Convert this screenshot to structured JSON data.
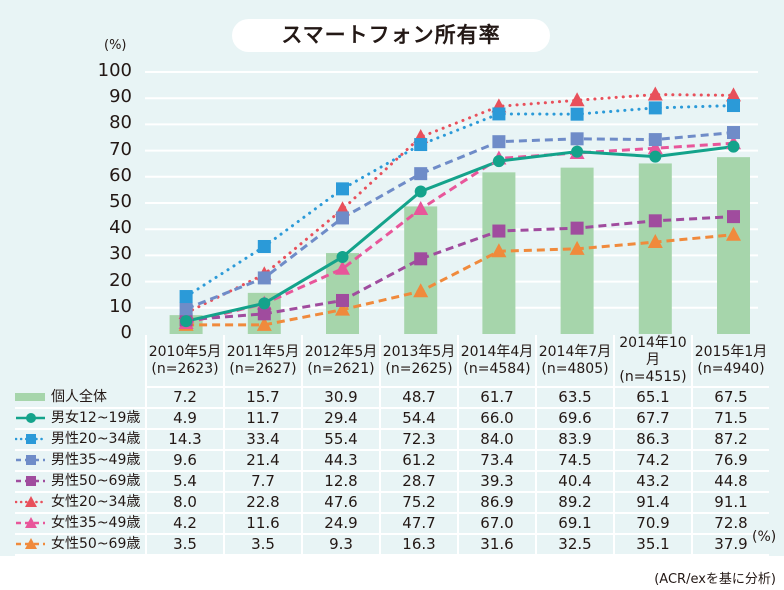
{
  "title": "スマートフォン所有率",
  "unit_label": "(%)",
  "source_note": "(ACR/exを基に分析)",
  "unit_suffix": "(%)",
  "chart_data": {
    "type": "bar+line",
    "title": "スマートフォン所有率",
    "ylabel": "(%)",
    "ylim": [
      0,
      100
    ],
    "yticks": [
      0,
      10,
      20,
      30,
      40,
      50,
      60,
      70,
      80,
      90,
      100
    ],
    "grid": true,
    "legend": "table-left",
    "categories": [
      "2010年5月",
      "2011年5月",
      "2012年5月",
      "2013年5月",
      "2014年4月",
      "2014年7月",
      "2014年10月",
      "2015年1月"
    ],
    "sample_sizes": [
      "(n=2623)",
      "(n=2627)",
      "(n=2621)",
      "(n=2625)",
      "(n=4584)",
      "(n=4805)",
      "(n=4515)",
      "(n=4940)"
    ],
    "series": [
      {
        "name": "個人全体",
        "kind": "bar",
        "marker": "none",
        "line": "none",
        "color": "#a6d5ab",
        "values": [
          7.2,
          15.7,
          30.9,
          48.7,
          61.7,
          63.5,
          65.1,
          67.5
        ]
      },
      {
        "name": "男女12~19歳",
        "kind": "line",
        "marker": "circle",
        "line": "solid",
        "color": "#14a38b",
        "values": [
          4.9,
          11.7,
          29.4,
          54.4,
          66.0,
          69.6,
          67.7,
          71.5
        ]
      },
      {
        "name": "男性20~34歳",
        "kind": "line",
        "marker": "square",
        "line": "dotted",
        "color": "#2b9ad8",
        "values": [
          14.3,
          33.4,
          55.4,
          72.3,
          84.0,
          83.9,
          86.3,
          87.2
        ]
      },
      {
        "name": "男性35~49歳",
        "kind": "line",
        "marker": "square",
        "line": "dashed",
        "color": "#6f8cc8",
        "values": [
          9.6,
          21.4,
          44.3,
          61.2,
          73.4,
          74.5,
          74.2,
          76.9
        ]
      },
      {
        "name": "男性50~69歳",
        "kind": "line",
        "marker": "square",
        "line": "dashed",
        "color": "#a04c9e",
        "values": [
          5.4,
          7.7,
          12.8,
          28.7,
          39.3,
          40.4,
          43.2,
          44.8
        ]
      },
      {
        "name": "女性20~34歳",
        "kind": "line",
        "marker": "triangle",
        "line": "dotted",
        "color": "#e8505b",
        "values": [
          8.0,
          22.8,
          47.6,
          75.2,
          86.9,
          89.2,
          91.4,
          91.1
        ]
      },
      {
        "name": "女性35~49歳",
        "kind": "line",
        "marker": "triangle",
        "line": "dashed",
        "color": "#e8569a",
        "values": [
          4.2,
          11.6,
          24.9,
          47.7,
          67.0,
          69.1,
          70.9,
          72.8
        ]
      },
      {
        "name": "女性50~69歳",
        "kind": "line",
        "marker": "triangle",
        "line": "dashed",
        "color": "#f08a3c",
        "values": [
          3.5,
          3.5,
          9.3,
          16.3,
          31.6,
          32.5,
          35.1,
          37.9
        ]
      }
    ]
  }
}
